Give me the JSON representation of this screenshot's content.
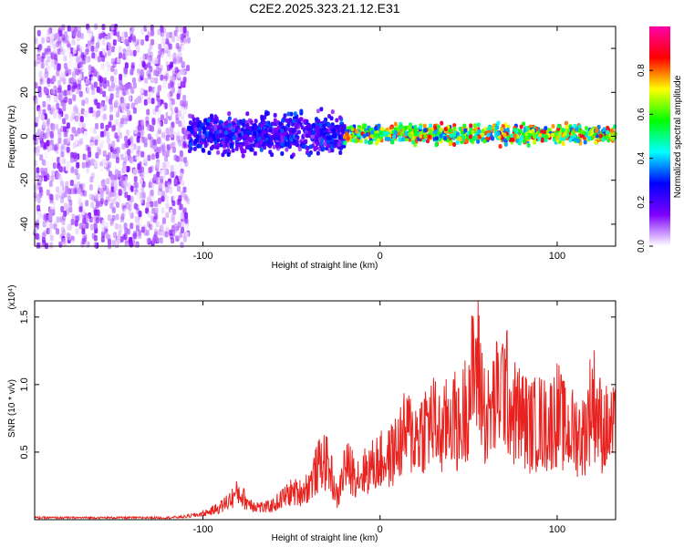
{
  "figure_title": "C2E2.2025.323.21.12.E31",
  "colors": {
    "snr_line": "#e8231f",
    "frame": "#000000",
    "background": "#ffffff"
  },
  "chart_data": [
    {
      "type": "heatmap",
      "title": "C2E2.2025.323.21.12.E31",
      "xlabel": "Height of straight line (km)",
      "ylabel": "Frequency (Hz)",
      "xlim": [
        -195,
        133
      ],
      "ylim": [
        -50,
        50
      ],
      "xticks": [
        -100,
        0,
        100
      ],
      "yticks": [
        -40,
        -20,
        0,
        20,
        40
      ],
      "xtick_labels": [
        "-100",
        "0",
        "100"
      ],
      "ytick_labels": [
        "-40",
        "-20",
        "0",
        "20",
        "40"
      ],
      "colorbar": {
        "label": "Normalized spectral amplitude",
        "range": [
          0,
          1
        ],
        "ticks": [
          0.0,
          0.2,
          0.4,
          0.6,
          0.8
        ],
        "tick_labels": [
          "0.0",
          "0.2",
          "0.4",
          "0.6",
          "0.8"
        ],
        "colormap": [
          "#ffffff",
          "#7f00ff",
          "#0000ff",
          "#00ffff",
          "#00ff00",
          "#ffff00",
          "#ff0000",
          "#ff00aa"
        ]
      },
      "regions": [
        {
          "x_range": [
            -195,
            -108
          ],
          "description": "broadband noise across all frequencies",
          "amplitude": [
            0.0,
            0.15
          ]
        },
        {
          "x_range": [
            -108,
            -20
          ],
          "center_hz": 1,
          "width_hz": 8,
          "amplitude": [
            0.1,
            0.35
          ]
        },
        {
          "x_range": [
            -20,
            133
          ],
          "center_hz": 1,
          "width_hz": 4,
          "amplitude": [
            0.3,
            0.9
          ]
        }
      ]
    },
    {
      "type": "line",
      "title": "",
      "xlabel": "Height of straight line (km)",
      "ylabel": "SNR (10 * v/v)",
      "y_multiplier": "(x10⁴)",
      "xlim": [
        -195,
        133
      ],
      "ylim": [
        0,
        1.62
      ],
      "xticks": [
        -100,
        0,
        100
      ],
      "yticks": [
        0.5,
        1.0,
        1.5
      ],
      "xtick_labels": [
        "-100",
        "0",
        "100"
      ],
      "ytick_labels": [
        "0.5",
        "1.0",
        "1.5"
      ],
      "series": [
        {
          "name": "SNR",
          "x": [
            -195,
            -180,
            -160,
            -140,
            -120,
            -110,
            -100,
            -95,
            -90,
            -85,
            -80,
            -75,
            -70,
            -65,
            -60,
            -55,
            -50,
            -45,
            -40,
            -36,
            -32,
            -28,
            -24,
            -20,
            -16,
            -12,
            -8,
            -4,
            0,
            5,
            10,
            15,
            20,
            25,
            30,
            35,
            40,
            45,
            50,
            55,
            60,
            65,
            70,
            75,
            80,
            85,
            90,
            95,
            100,
            105,
            110,
            115,
            120,
            125,
            130
          ],
          "values": [
            0.02,
            0.02,
            0.02,
            0.02,
            0.02,
            0.03,
            0.06,
            0.09,
            0.13,
            0.2,
            0.28,
            0.18,
            0.14,
            0.12,
            0.15,
            0.22,
            0.28,
            0.28,
            0.35,
            0.5,
            0.62,
            0.5,
            0.2,
            0.55,
            0.5,
            0.45,
            0.5,
            0.55,
            0.6,
            0.62,
            0.75,
            0.9,
            0.85,
            0.95,
            1.0,
            0.85,
            1.1,
            0.9,
            1.3,
            1.6,
            1.0,
            1.2,
            1.4,
            1.1,
            1.05,
            0.95,
            1.0,
            0.95,
            1.1,
            0.9,
            0.9,
            0.85,
            1.25,
            0.95,
            0.9
          ]
        }
      ]
    }
  ]
}
